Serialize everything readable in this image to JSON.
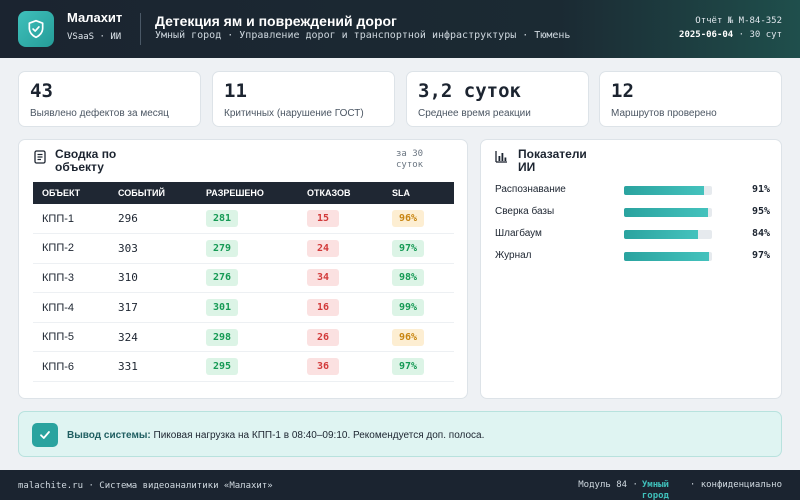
{
  "header": {
    "brand_name": "Малахит",
    "brand_sub": "VSaaS · ИИ",
    "title": "Детекция ям и повреждений дорог",
    "subtitle": "Умный город · Управление дорог и транспортной инфраструктуры · Тюмень",
    "report_label": "Отчёт № M-84-352",
    "report_date": "2025-06-04",
    "report_period": "· 30 сут",
    "logo_icon": "shield-check-icon"
  },
  "kpis": [
    {
      "value": "43",
      "label": "Выявлено дефектов за месяц"
    },
    {
      "value": "11",
      "label": "Критичных (нарушение ГОСТ)"
    },
    {
      "value": "3,2 суток",
      "label": "Среднее время реакции"
    },
    {
      "value": "12",
      "label": "Маршрутов проверено"
    }
  ],
  "summary": {
    "title": "Сводка по объекту",
    "period": "за 30 суток",
    "icon": "document-icon",
    "columns": [
      "ОБЪЕКТ",
      "СОБЫТИЙ",
      "РАЗРЕШЕНО",
      "ОТКАЗОВ",
      "SLA"
    ],
    "rows": [
      {
        "object": "КПП-1",
        "events": "296",
        "allowed": "281",
        "denied": "15",
        "sla": "96%",
        "sla_status": "amber"
      },
      {
        "object": "КПП-2",
        "events": "303",
        "allowed": "279",
        "denied": "24",
        "sla": "97%",
        "sla_status": "green"
      },
      {
        "object": "КПП-3",
        "events": "310",
        "allowed": "276",
        "denied": "34",
        "sla": "98%",
        "sla_status": "green"
      },
      {
        "object": "КПП-4",
        "events": "317",
        "allowed": "301",
        "denied": "16",
        "sla": "99%",
        "sla_status": "green"
      },
      {
        "object": "КПП-5",
        "events": "324",
        "allowed": "298",
        "denied": "26",
        "sla": "96%",
        "sla_status": "amber"
      },
      {
        "object": "КПП-6",
        "events": "331",
        "allowed": "295",
        "denied": "36",
        "sla": "97%",
        "sla_status": "green"
      }
    ]
  },
  "ai": {
    "title": "Показатели ИИ",
    "icon": "bar-chart-icon",
    "metrics": [
      {
        "label": "Распознавание",
        "value": "91%",
        "fraction": 0.91
      },
      {
        "label": "Сверка базы",
        "value": "95%",
        "fraction": 0.95
      },
      {
        "label": "Шлагбаум",
        "value": "84%",
        "fraction": 0.84
      },
      {
        "label": "Журнал",
        "value": "97%",
        "fraction": 0.97
      }
    ]
  },
  "system": {
    "label": "Вывод системы:",
    "text": "Пиковая нагрузка на КПП-1 в 08:40–09:10. Рекомендуется доп. полоса.",
    "icon": "check-icon"
  },
  "footer": {
    "left": "malachite.ru · Система видеоаналитики «Малахит»",
    "module": "Модуль 84 ·",
    "tag": "Умный город",
    "conf": "· конфиденциально"
  },
  "colors": {
    "accent": "#2aa39f",
    "dark": "#1b2430",
    "ok": "#169a55",
    "bad": "#d23a3a",
    "warn": "#c88512"
  }
}
